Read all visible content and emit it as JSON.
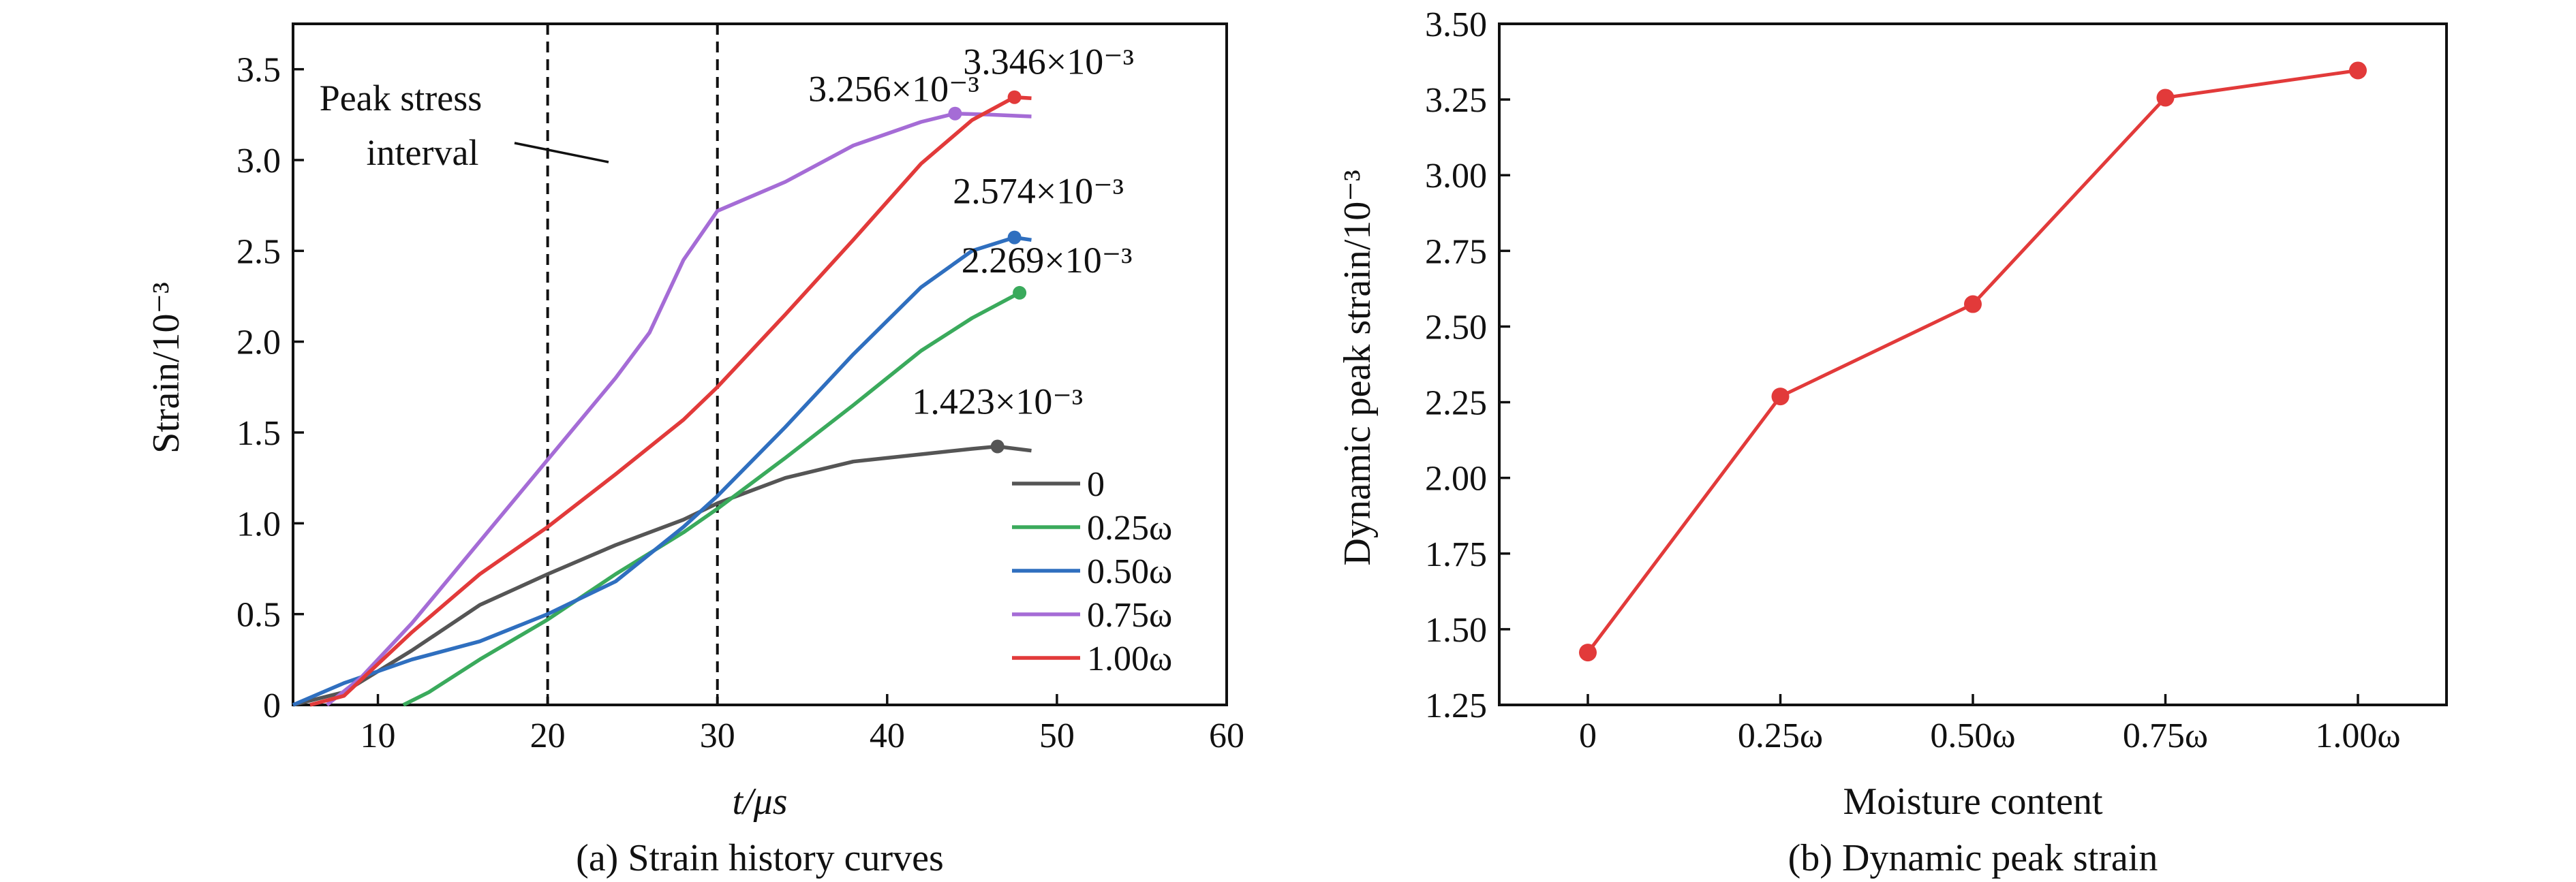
{
  "chart_data": [
    {
      "type": "line",
      "caption": "(a) Strain history curves",
      "xlabel": "t/μs",
      "ylabel": "Strain/10⁻³",
      "xlim": [
        5,
        60
      ],
      "ylim": [
        0,
        3.75
      ],
      "xticks": [
        "10",
        "20",
        "30",
        "40",
        "50",
        "60"
      ],
      "xtick_values": [
        10,
        20,
        30,
        40,
        50,
        60
      ],
      "yticks": [
        "0",
        "0.5",
        "1.0",
        "1.5",
        "2.0",
        "2.5",
        "3.0",
        "3.5"
      ],
      "ytick_values": [
        0,
        0.5,
        1.0,
        1.5,
        2.0,
        2.5,
        3.0,
        3.5
      ],
      "vlines": [
        20,
        30
      ],
      "interval_label_line1": "Peak stress",
      "interval_label_line2": "interval",
      "legend_position": "lower-right",
      "series": [
        {
          "name": "0",
          "color": "#555555",
          "x": [
            5,
            8,
            12,
            16,
            20,
            24,
            28,
            30,
            34,
            38,
            42,
            45,
            46.5,
            48.5
          ],
          "y": [
            0,
            0.07,
            0.3,
            0.55,
            0.72,
            0.88,
            1.02,
            1.11,
            1.25,
            1.34,
            1.38,
            1.41,
            1.423,
            1.4
          ],
          "peak": {
            "x": 46.5,
            "y": 1.423,
            "label": "1.423×10⁻³"
          }
        },
        {
          "name": "0.25ω",
          "color": "#3aaa5c",
          "x": [
            11.5,
            13,
            16,
            20,
            24,
            28,
            30,
            34,
            38,
            42,
            45,
            47.8
          ],
          "y": [
            0,
            0.07,
            0.25,
            0.47,
            0.72,
            0.95,
            1.08,
            1.36,
            1.65,
            1.95,
            2.13,
            2.269
          ],
          "peak": {
            "x": 47.8,
            "y": 2.269,
            "label": "2.269×10⁻³"
          }
        },
        {
          "name": "0.50ω",
          "color": "#2f6fbf",
          "x": [
            5,
            8,
            12,
            16,
            20,
            24,
            28,
            30,
            34,
            38,
            42,
            45,
            47.5,
            48.5
          ],
          "y": [
            0,
            0.12,
            0.25,
            0.35,
            0.5,
            0.68,
            0.98,
            1.15,
            1.53,
            1.93,
            2.3,
            2.5,
            2.574,
            2.56
          ],
          "peak": {
            "x": 47.5,
            "y": 2.574,
            "label": "2.574×10⁻³"
          }
        },
        {
          "name": "0.75ω",
          "color": "#a56cd6",
          "x": [
            7,
            9,
            12,
            16,
            20,
            24,
            26,
            28,
            30,
            34,
            38,
            42,
            44,
            46,
            48.5
          ],
          "y": [
            0,
            0.15,
            0.45,
            0.9,
            1.35,
            1.8,
            2.05,
            2.45,
            2.72,
            2.88,
            3.08,
            3.21,
            3.256,
            3.25,
            3.24
          ],
          "peak": {
            "x": 44,
            "y": 3.256,
            "label": "3.256×10⁻³"
          }
        },
        {
          "name": "1.00ω",
          "color": "#e23a3a",
          "x": [
            6,
            8,
            12,
            16,
            20,
            24,
            28,
            30,
            34,
            38,
            42,
            45,
            47.5,
            48.5
          ],
          "y": [
            0,
            0.05,
            0.4,
            0.72,
            0.98,
            1.27,
            1.57,
            1.75,
            2.15,
            2.56,
            2.98,
            3.22,
            3.346,
            3.34
          ],
          "peak": {
            "x": 47.5,
            "y": 3.346,
            "label": "3.346×10⁻³"
          }
        }
      ]
    },
    {
      "type": "line",
      "caption": "(b) Dynamic peak strain",
      "xlabel": "Moisture content",
      "ylabel": "Dynamic peak strain/10⁻³",
      "categories": [
        "0",
        "0.25ω",
        "0.50ω",
        "0.75ω",
        "1.00ω"
      ],
      "ylim": [
        1.25,
        3.5
      ],
      "yticks": [
        "1.25",
        "1.50",
        "1.75",
        "2.00",
        "2.25",
        "2.50",
        "2.75",
        "3.00",
        "3.25",
        "3.50"
      ],
      "ytick_values": [
        1.25,
        1.5,
        1.75,
        2.0,
        2.25,
        2.5,
        2.75,
        3.0,
        3.25,
        3.5
      ],
      "color": "#e23a3a",
      "values": [
        1.423,
        2.269,
        2.574,
        3.256,
        3.346
      ]
    }
  ]
}
